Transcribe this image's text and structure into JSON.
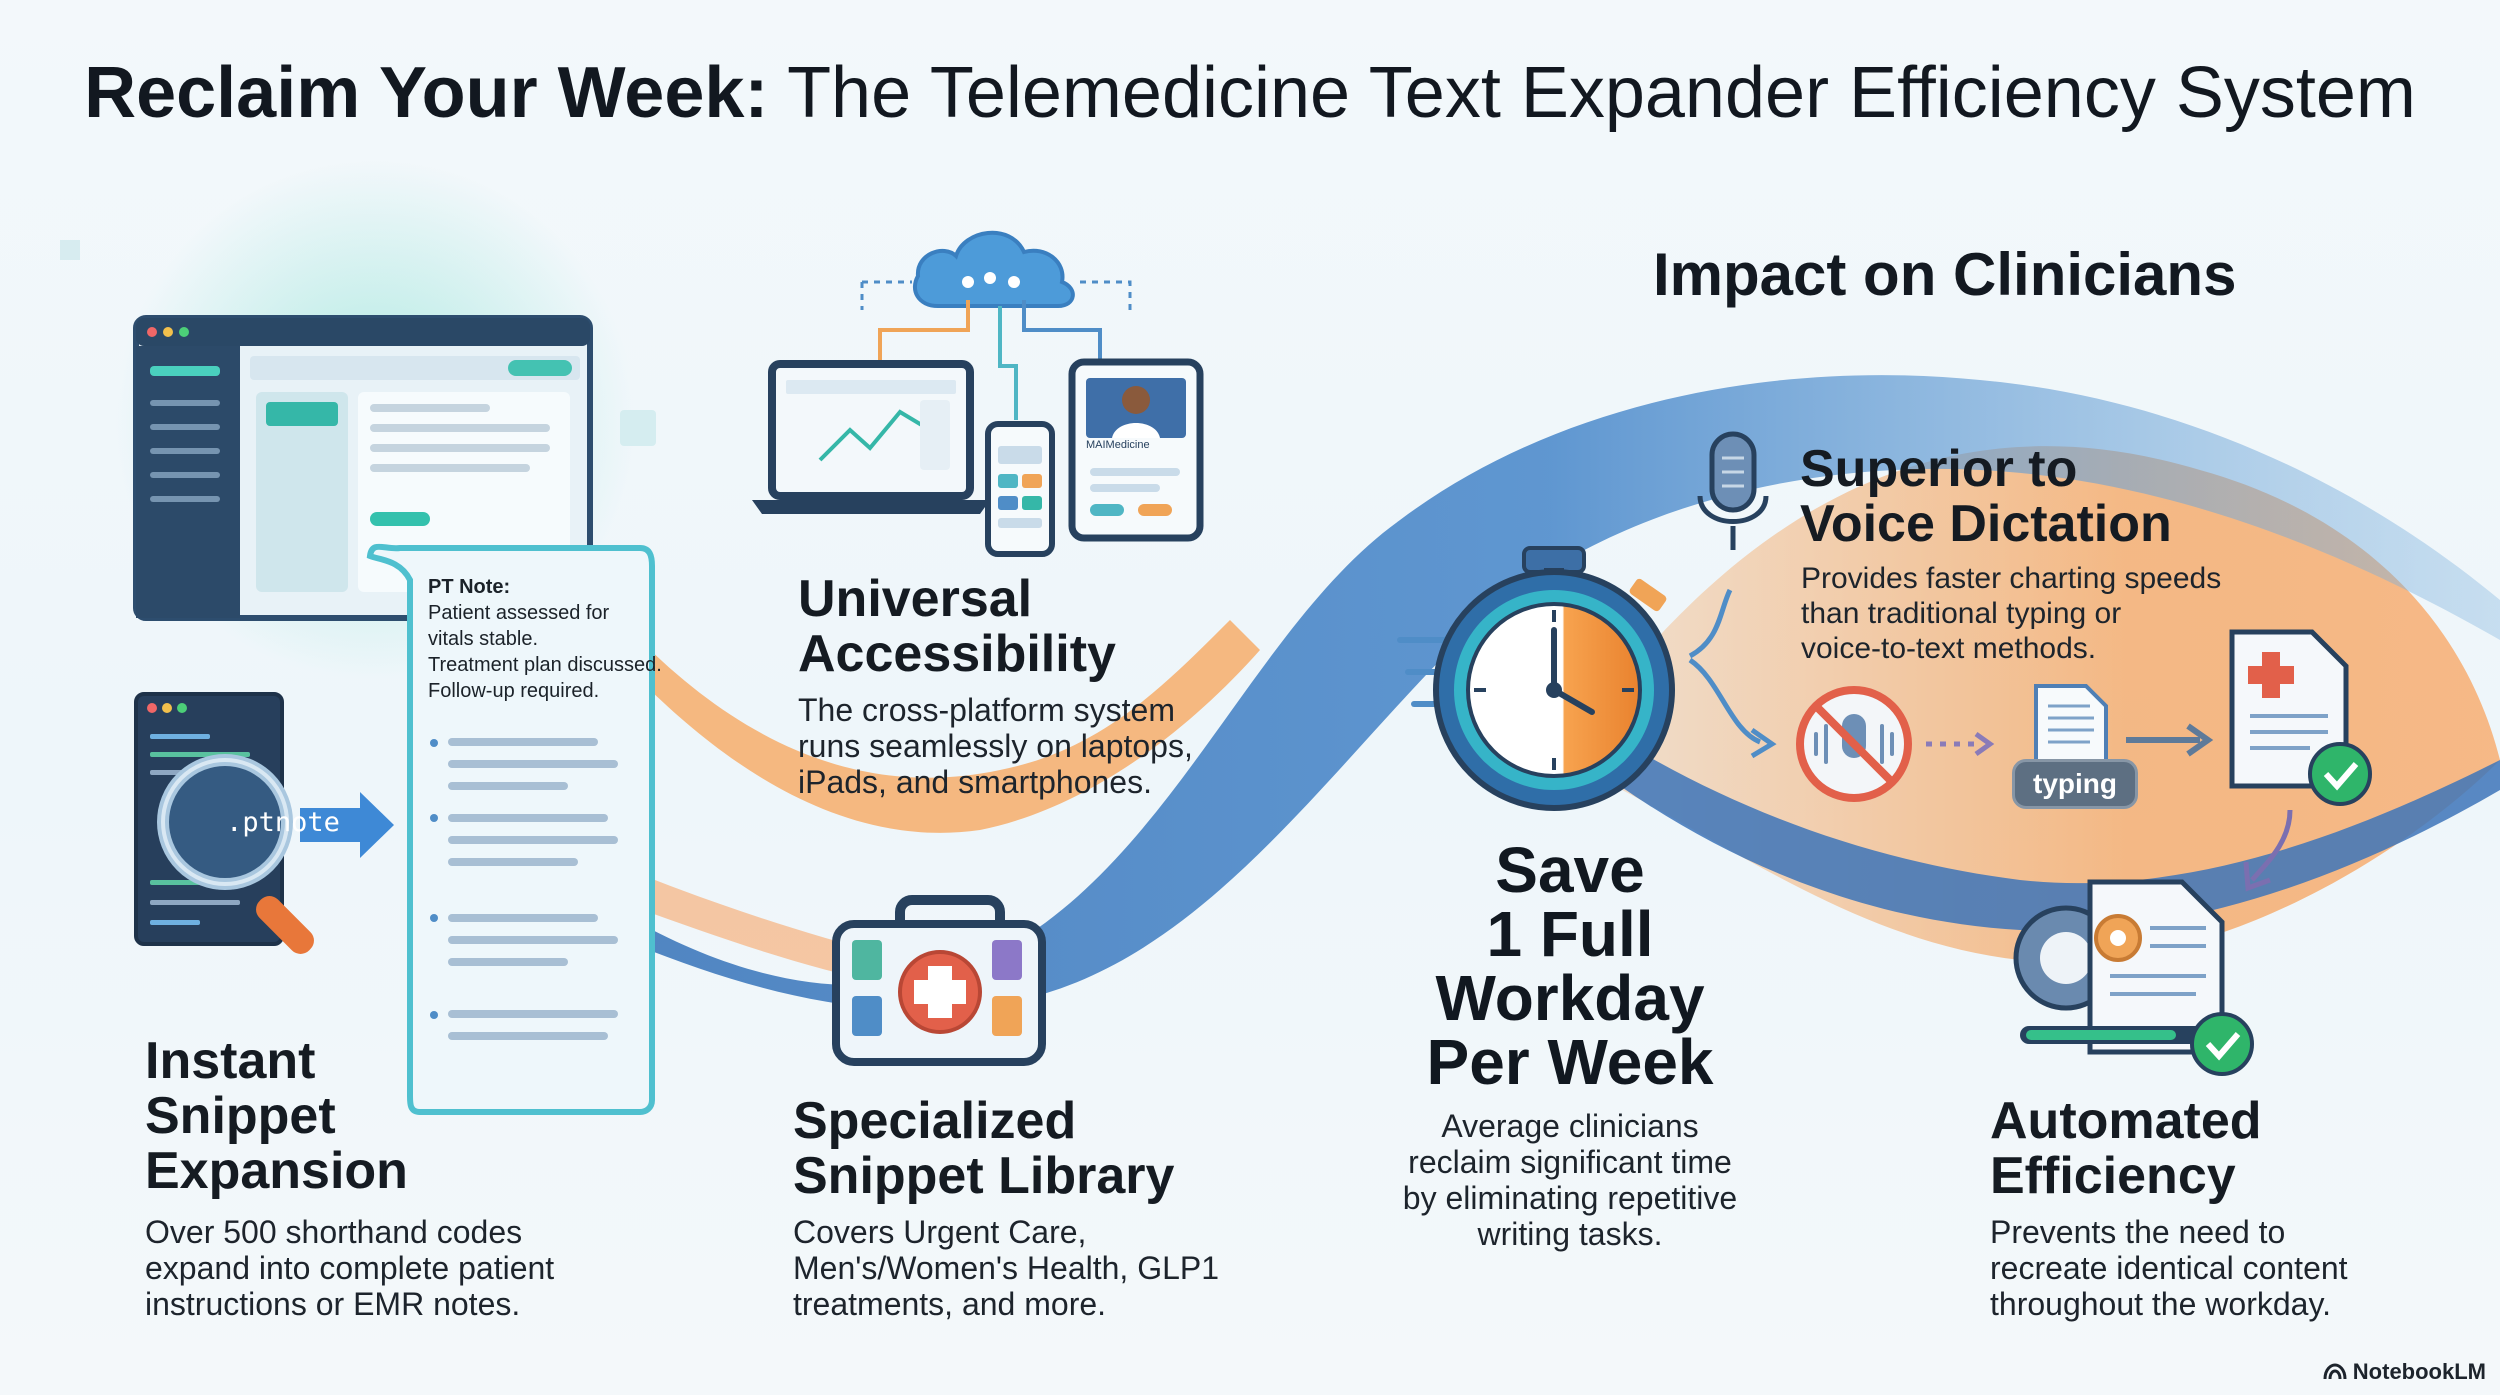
{
  "title": {
    "bold": "Reclaim Your Week:",
    "rest": " The Telemedicine Text Expander Efficiency System"
  },
  "impact_heading": "Impact on Clinicians",
  "cards": {
    "instant": {
      "title_lines": [
        "Instant",
        "Snippet",
        "Expansion"
      ],
      "desc_lines": [
        "Over 500 shorthand codes",
        "expand into complete patient",
        "instructions or EMR notes."
      ]
    },
    "universal": {
      "title_lines": [
        "Universal",
        "Accessibility"
      ],
      "desc_lines": [
        "The cross-platform system",
        "runs seamlessly on laptops,",
        "iPads, and smartphones."
      ]
    },
    "library": {
      "title_lines": [
        "Specialized",
        "Snippet Library"
      ],
      "desc_lines": [
        "Covers Urgent Care,",
        "Men's/Women's Health, GLP1",
        "treatments, and more."
      ]
    },
    "save": {
      "title_lines": [
        "Save",
        "1 Full",
        "Workday",
        "Per Week"
      ],
      "desc_lines": [
        "Average clinicians",
        "reclaim significant time",
        "by eliminating repetitive",
        "writing tasks."
      ]
    },
    "voice": {
      "title_lines": [
        "Superior to",
        "Voice Dictation"
      ],
      "desc_lines": [
        "Provides faster charting speeds",
        "than traditional typing or",
        "voice-to-text methods."
      ]
    },
    "automated": {
      "title_lines": [
        "Automated",
        "Efficiency"
      ],
      "desc_lines": [
        "Prevents the need to",
        "recreate identical content",
        "throughout the workday."
      ]
    }
  },
  "pt_note": {
    "title": "PT Note:",
    "lines": [
      "Patient assessed for",
      "vitals stable.",
      "Treatment plan discussed.",
      "Follow-up required."
    ]
  },
  "snippet_code": ".ptnote",
  "typing_label": "typing",
  "tablet_label": "MAIMedicine",
  "brand": "NotebookLM",
  "colors": {
    "blue_wave": "#4f86c4",
    "orange_wave": "#f6a45e",
    "teal": "#2fb7a9",
    "green_check": "#2fb56a",
    "red_no": "#e2604a"
  },
  "icons": [
    "browser-window-icon",
    "code-editor-icon",
    "magnifier-icon",
    "arrow-right-icon",
    "cloud-icon",
    "laptop-icon",
    "smartphone-icon",
    "tablet-icon",
    "medical-kit-icon",
    "stopwatch-icon",
    "microphone-icon",
    "no-voice-icon",
    "document-icon",
    "medical-document-icon",
    "gear-document-icon",
    "checkmark-icon",
    "notebooklm-logo-icon"
  ]
}
